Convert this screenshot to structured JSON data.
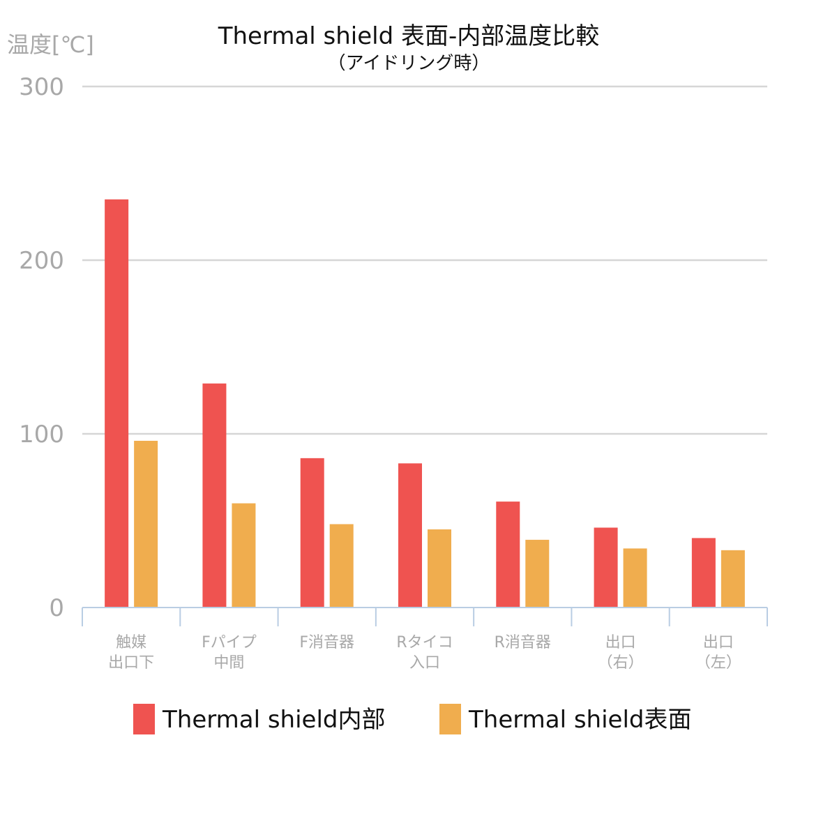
{
  "chart_data": {
    "type": "bar",
    "title": "Thermal shield  表面-内部温度比較",
    "subtitle": "（アイドリング時）",
    "ylabel": "温度[℃]",
    "xlabel": "",
    "ylim": [
      0,
      300
    ],
    "yticks": [
      "0",
      "100",
      "200",
      "300"
    ],
    "grid": true,
    "legend_position": "bottom",
    "categories": [
      [
        "触媒",
        "出口下"
      ],
      [
        "Fパイプ",
        "中間"
      ],
      [
        "F消音器"
      ],
      [
        "Rタイコ",
        "入口"
      ],
      [
        "R消音器"
      ],
      [
        "出口",
        "（右）"
      ],
      [
        "出口",
        "（左）"
      ]
    ],
    "series": [
      {
        "name": "Thermal shield内部",
        "color": "#ef5350",
        "values": [
          235,
          129,
          86,
          83,
          61,
          46,
          40
        ]
      },
      {
        "name": "Thermal shield表面",
        "color": "#f0ad4e",
        "values": [
          96,
          60,
          48,
          45,
          39,
          34,
          33
        ]
      }
    ]
  }
}
